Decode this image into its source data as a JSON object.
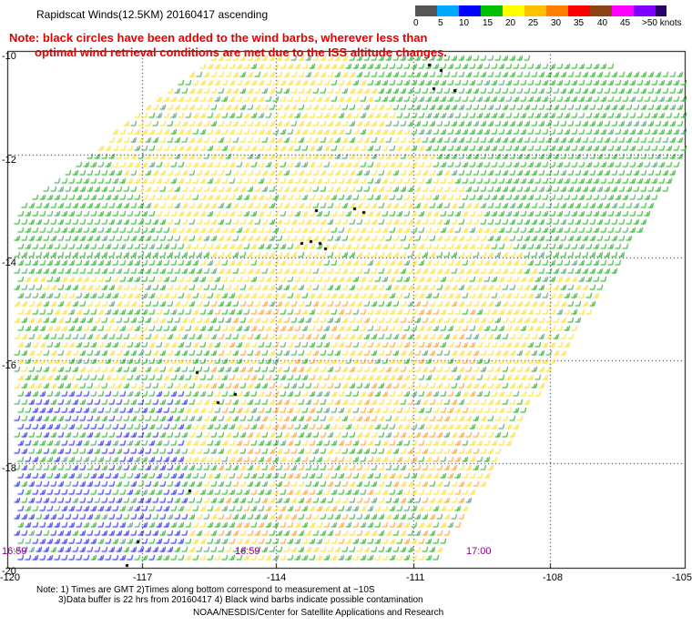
{
  "header": {
    "title": "Rapidscat Winds(12.5KM) 20160417 ascending",
    "note_line1": "Note: black circles have been added to the wind barbs, wherever less than",
    "note_line2": "optimal wind retrieval conditions are met due to the ISS altitude changes."
  },
  "legend": {
    "colors": [
      "#555555",
      "#00a8ff",
      "#0000ff",
      "#00c000",
      "#ffff00",
      "#ffc000",
      "#ff7f00",
      "#ff0000",
      "#8b4513",
      "#ff00ff",
      "#7f00ff",
      "#2b006b"
    ],
    "labels": [
      "0",
      "5",
      "10",
      "15",
      "20",
      "25",
      "30",
      "35",
      "40",
      "45",
      ">50 knots"
    ]
  },
  "map": {
    "lat_labels": [
      "-10",
      "-12",
      "-14",
      "-16",
      "-18",
      "-20"
    ],
    "lon_labels": [
      "-120",
      "-117",
      "-114",
      "-111",
      "-108",
      "-105"
    ],
    "time_labels": [
      "16:59",
      "16:59",
      "17:00"
    ]
  },
  "footer": {
    "line1": "Note: 1) Times are GMT 2)Times along bottom correspond to measurement at ~10S",
    "line2": "3)Data buffer is 22 hrs from 20160417 4) Black wind barbs indicate possible contamination",
    "line3": "NOAA/NESDIS/Center for Satellite Applications and Research"
  }
}
